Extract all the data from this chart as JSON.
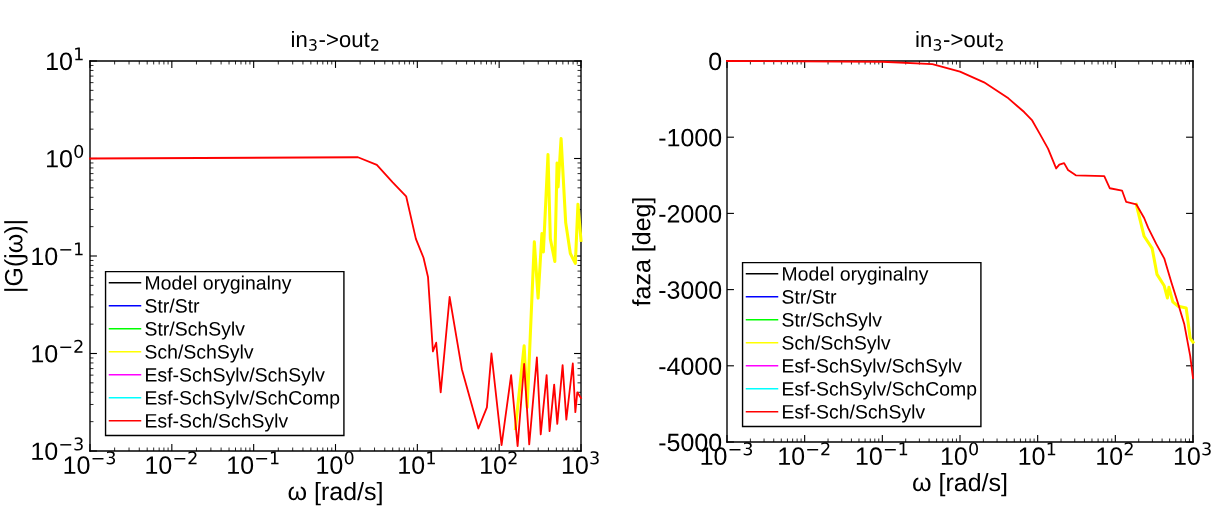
{
  "chart_data": [
    {
      "type": "line",
      "title": "in$_{3}$->out$_{2}$",
      "xlabel": "ω [rad/s]",
      "ylabel": "|G(jω)|",
      "log": "xy",
      "grid": false,
      "legend": "bottom left",
      "xlim": [
        0.001,
        1000
      ],
      "xticks": [
        {
          "value": 0.001,
          "label": "10$^{−3}$"
        },
        {
          "value": 0.01,
          "label": "10$^{−2}$"
        },
        {
          "value": 0.1,
          "label": "10$^{−1}$"
        },
        {
          "value": 1,
          "label": "10$^{0}$"
        },
        {
          "value": 10,
          "label": "10$^{1}$"
        },
        {
          "value": 100,
          "label": "10$^{2}$"
        },
        {
          "value": 1000,
          "label": "10$^{3}$"
        }
      ],
      "ylim": [
        0.001,
        10
      ],
      "yticks": [
        {
          "value": 0.001,
          "label": "10$^{−3}$"
        },
        {
          "value": 0.01,
          "label": "10$^{−2}$"
        },
        {
          "value": 0.1,
          "label": "10$^{−1}$"
        },
        {
          "value": 1,
          "label": "10$^{0}$"
        },
        {
          "value": 10,
          "label": "10$^{1}$"
        }
      ],
      "series": [
        {
          "name": "Model oryginalny",
          "color": "#000000"
        },
        {
          "name": "Str/Str",
          "color": "#0000ff"
        },
        {
          "name": "Str/SchSylv",
          "color": "#00ff00"
        },
        {
          "name": "Sch/SchSylv",
          "color": "#ffff00",
          "x": [
            158,
            202,
            220,
            269,
            299,
            333,
            347,
            395,
            422,
            479,
            510,
            525,
            571,
            650,
            741,
            853,
            918,
            1000
          ],
          "values": [
            0.0017,
            0.012,
            0.0028,
            0.14,
            0.037,
            0.17,
            0.11,
            1.1,
            0.15,
            0.088,
            0.9,
            0.51,
            1.6,
            0.22,
            0.106,
            0.084,
            0.34,
            0.145
          ]
        },
        {
          "name": "Esf-SchSylv/SchSylv",
          "color": "#ff00ff"
        },
        {
          "name": "Esf-SchSylv/SchComp",
          "color": "#00ffff"
        },
        {
          "name": "Esf-Sch/SchSylv",
          "color": "#ff0000",
          "x": [
            0.001,
            1.88,
            3.2,
            5.0,
            7.3,
            9.6,
            11.9,
            13.5,
            15.5,
            17,
            19.3,
            24.8,
            35,
            55.7,
            70.8,
            80.5,
            107,
            140,
            168,
            202,
            233,
            289,
            322,
            380,
            413,
            470,
            513,
            596,
            662,
            794,
            853,
            901,
            1000
          ],
          "values": [
            1.0,
            1.03,
            0.86,
            0.57,
            0.41,
            0.15,
            0.096,
            0.061,
            0.0105,
            0.0129,
            0.004,
            0.038,
            0.0069,
            0.0017,
            0.0028,
            0.01,
            0.00115,
            0.006,
            0.00112,
            0.0078,
            0.00117,
            0.0091,
            0.00148,
            0.006,
            0.0016,
            0.0048,
            0.0019,
            0.0076,
            0.0021,
            0.0079,
            0.0025,
            0.004,
            0.0035
          ]
        }
      ]
    },
    {
      "type": "line",
      "title": "in$_{3}$->out$_{2}$",
      "xlabel": "ω [rad/s]",
      "ylabel": "faza [deg]",
      "log": "x",
      "grid": false,
      "legend": "bottom left",
      "xlim": [
        0.001,
        1000
      ],
      "xticks": [
        {
          "value": 0.001,
          "label": "10$^{−3}$"
        },
        {
          "value": 0.01,
          "label": "10$^{−2}$"
        },
        {
          "value": 0.1,
          "label": "10$^{−1}$"
        },
        {
          "value": 1,
          "label": "10$^{0}$"
        },
        {
          "value": 10,
          "label": "10$^{1}$"
        },
        {
          "value": 100,
          "label": "10$^{2}$"
        },
        {
          "value": 1000,
          "label": "10$^{3}$"
        }
      ],
      "ylim": [
        -5000,
        0
      ],
      "yticks": [
        -5000,
        -4000,
        -3000,
        -2000,
        -1000,
        0
      ],
      "series": [
        {
          "name": "Model oryginalny",
          "color": "#000000"
        },
        {
          "name": "Str/Str",
          "color": "#0000ff"
        },
        {
          "name": "Str/SchSylv",
          "color": "#00ff00"
        },
        {
          "name": "Sch/SchSylv",
          "color": "#ffff00",
          "x": [
            186,
            235,
            298,
            344,
            426,
            468,
            490,
            550,
            645,
            817,
            920,
            1000
          ],
          "values": [
            -1880,
            -2300,
            -2460,
            -2800,
            -2950,
            -3110,
            -2970,
            -3160,
            -3220,
            -3240,
            -3640,
            -3690
          ]
        },
        {
          "name": "Esf-SchSylv/SchSylv",
          "color": "#ff00ff"
        },
        {
          "name": "Esf-SchSylv/SchComp",
          "color": "#00ffff"
        },
        {
          "name": "Esf-Sch/SchSylv",
          "color": "#ff0000",
          "x": [
            0.001,
            0.1,
            0.44,
            1.0,
            2.04,
            4.2,
            6.7,
            8.5,
            10.7,
            13.6,
            17.3,
            19,
            21.9,
            24.6,
            31,
            72,
            85,
            122,
            138,
            186,
            235,
            265,
            336,
            426,
            525,
            645,
            771,
            920,
            1000
          ],
          "values": [
            0,
            -10,
            -40,
            -140,
            -280,
            -490,
            -670,
            -780,
            -960,
            -1150,
            -1410,
            -1360,
            -1340,
            -1430,
            -1500,
            -1510,
            -1670,
            -1700,
            -1850,
            -1880,
            -2060,
            -2190,
            -2400,
            -2590,
            -2900,
            -3190,
            -3450,
            -3870,
            -4160
          ]
        }
      ]
    }
  ]
}
